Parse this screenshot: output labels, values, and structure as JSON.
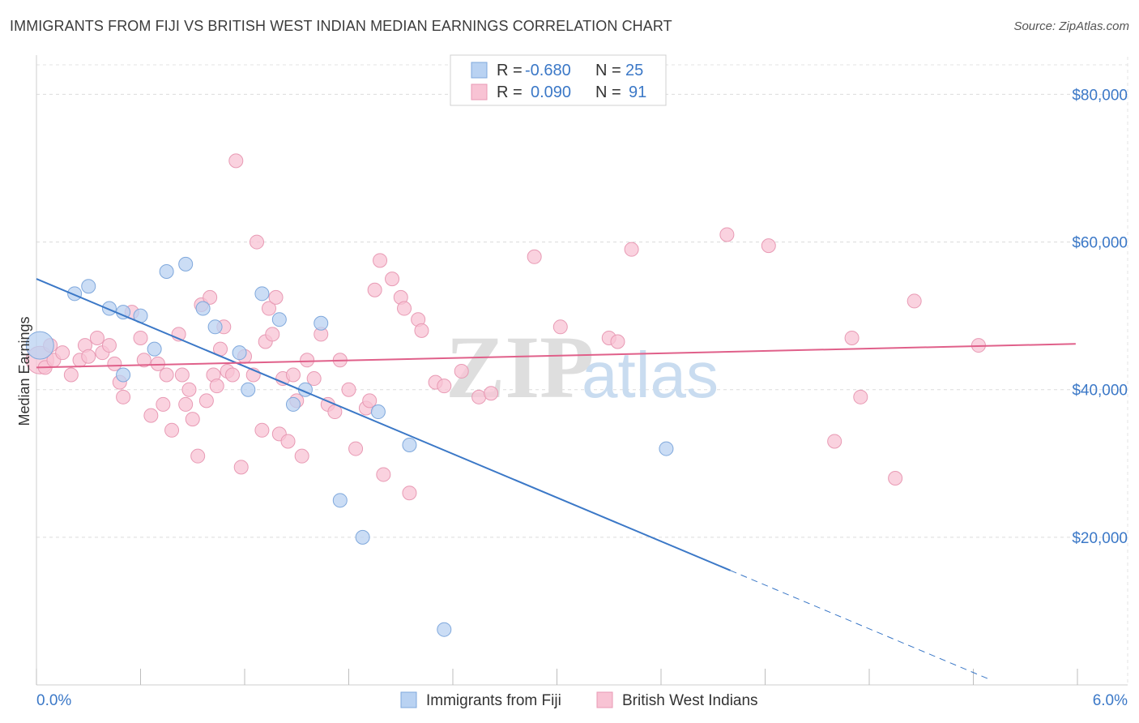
{
  "title": "IMMIGRANTS FROM FIJI VS BRITISH WEST INDIAN MEDIAN EARNINGS CORRELATION CHART",
  "source": "Source: ZipAtlas.com",
  "watermark": {
    "part1": "ZIP",
    "part2": "atlas"
  },
  "colors": {
    "blue": "#3b78c7",
    "blue_fill": "#b9d2f2",
    "pink": "#e0608a",
    "pink_fill": "#f8c3d4",
    "grid": "#d9d9d9"
  },
  "legend": {
    "rows": [
      {
        "r_label": "R =",
        "r_value": "-0.680",
        "n_label": "N =",
        "n_value": "25"
      },
      {
        "r_label": "R =",
        "r_value": "0.090",
        "n_label": "N =",
        "n_value": "91"
      }
    ]
  },
  "chart_data": {
    "type": "scatter",
    "ylabel": "Median Earnings",
    "xlim": [
      0.0,
      6.0
    ],
    "ylim": [
      0,
      84000
    ],
    "x_tick_labels": [
      "0.0%",
      "6.0%"
    ],
    "y_ticks": [
      {
        "value": 20000,
        "label": "$20,000"
      },
      {
        "value": 40000,
        "label": "$40,000"
      },
      {
        "value": 60000,
        "label": "$60,000"
      },
      {
        "value": 80000,
        "label": "$80,000"
      }
    ],
    "series": [
      {
        "name": "Immigrants from Fiji",
        "color": "#3b78c7",
        "trend": {
          "x0": 0.0,
          "y0": 55000,
          "x1": 4.0,
          "y1": 15500,
          "x_dash_end": 5.5
        },
        "points": [
          [
            0.02,
            46000
          ],
          [
            0.22,
            53000
          ],
          [
            0.3,
            54000
          ],
          [
            0.42,
            51000
          ],
          [
            0.5,
            50500
          ],
          [
            0.5,
            42000
          ],
          [
            0.6,
            50000
          ],
          [
            0.68,
            45500
          ],
          [
            0.75,
            56000
          ],
          [
            0.86,
            57000
          ],
          [
            0.96,
            51000
          ],
          [
            1.03,
            48500
          ],
          [
            1.17,
            45000
          ],
          [
            1.22,
            40000
          ],
          [
            1.3,
            53000
          ],
          [
            1.4,
            49500
          ],
          [
            1.48,
            38000
          ],
          [
            1.55,
            40000
          ],
          [
            1.64,
            49000
          ],
          [
            1.75,
            25000
          ],
          [
            1.88,
            20000
          ],
          [
            1.97,
            37000
          ],
          [
            2.15,
            32500
          ],
          [
            2.35,
            7500
          ],
          [
            3.63,
            32000
          ]
        ]
      },
      {
        "name": "British West Indians",
        "color": "#e0608a",
        "trend": {
          "x0": 0.0,
          "y0": 43000,
          "x1": 5.99,
          "y1": 46200
        },
        "points": [
          [
            0.02,
            44000
          ],
          [
            0.05,
            43000
          ],
          [
            0.08,
            46000
          ],
          [
            0.1,
            44000
          ],
          [
            0.15,
            45000
          ],
          [
            0.2,
            42000
          ],
          [
            0.25,
            44000
          ],
          [
            0.28,
            46000
          ],
          [
            0.3,
            44500
          ],
          [
            0.35,
            47000
          ],
          [
            0.38,
            45000
          ],
          [
            0.42,
            46000
          ],
          [
            0.45,
            43500
          ],
          [
            0.48,
            41000
          ],
          [
            0.5,
            39000
          ],
          [
            0.55,
            50500
          ],
          [
            0.6,
            47000
          ],
          [
            0.62,
            44000
          ],
          [
            0.66,
            36500
          ],
          [
            0.7,
            43500
          ],
          [
            0.73,
            38000
          ],
          [
            0.75,
            42000
          ],
          [
            0.78,
            34500
          ],
          [
            0.82,
            47500
          ],
          [
            0.84,
            42000
          ],
          [
            0.86,
            38000
          ],
          [
            0.88,
            40000
          ],
          [
            0.9,
            36000
          ],
          [
            0.93,
            31000
          ],
          [
            0.95,
            51500
          ],
          [
            0.98,
            38500
          ],
          [
            1.0,
            52500
          ],
          [
            1.02,
            42000
          ],
          [
            1.04,
            40500
          ],
          [
            1.06,
            45500
          ],
          [
            1.08,
            48500
          ],
          [
            1.1,
            42500
          ],
          [
            1.13,
            42000
          ],
          [
            1.15,
            71000
          ],
          [
            1.18,
            29500
          ],
          [
            1.2,
            44500
          ],
          [
            1.25,
            42000
          ],
          [
            1.27,
            60000
          ],
          [
            1.3,
            34500
          ],
          [
            1.32,
            46500
          ],
          [
            1.34,
            51000
          ],
          [
            1.36,
            47500
          ],
          [
            1.38,
            52500
          ],
          [
            1.4,
            34000
          ],
          [
            1.42,
            41500
          ],
          [
            1.45,
            33000
          ],
          [
            1.48,
            42000
          ],
          [
            1.5,
            38500
          ],
          [
            1.53,
            31000
          ],
          [
            1.56,
            44000
          ],
          [
            1.6,
            41500
          ],
          [
            1.64,
            47500
          ],
          [
            1.68,
            38000
          ],
          [
            1.72,
            37000
          ],
          [
            1.75,
            44000
          ],
          [
            1.8,
            40000
          ],
          [
            1.84,
            32000
          ],
          [
            1.9,
            37500
          ],
          [
            1.92,
            38500
          ],
          [
            1.95,
            53500
          ],
          [
            1.98,
            57500
          ],
          [
            2.0,
            28500
          ],
          [
            2.05,
            55000
          ],
          [
            2.1,
            52500
          ],
          [
            2.12,
            51000
          ],
          [
            2.15,
            26000
          ],
          [
            2.2,
            49500
          ],
          [
            2.22,
            48000
          ],
          [
            2.3,
            41000
          ],
          [
            2.35,
            40500
          ],
          [
            2.45,
            42500
          ],
          [
            2.55,
            39000
          ],
          [
            2.62,
            39500
          ],
          [
            2.87,
            58000
          ],
          [
            3.02,
            48500
          ],
          [
            3.3,
            47000
          ],
          [
            3.35,
            46500
          ],
          [
            3.43,
            59000
          ],
          [
            3.98,
            61000
          ],
          [
            4.22,
            59500
          ],
          [
            4.6,
            33000
          ],
          [
            4.7,
            47000
          ],
          [
            4.75,
            39000
          ],
          [
            4.95,
            28000
          ],
          [
            5.06,
            52000
          ],
          [
            5.43,
            46000
          ]
        ]
      }
    ]
  }
}
